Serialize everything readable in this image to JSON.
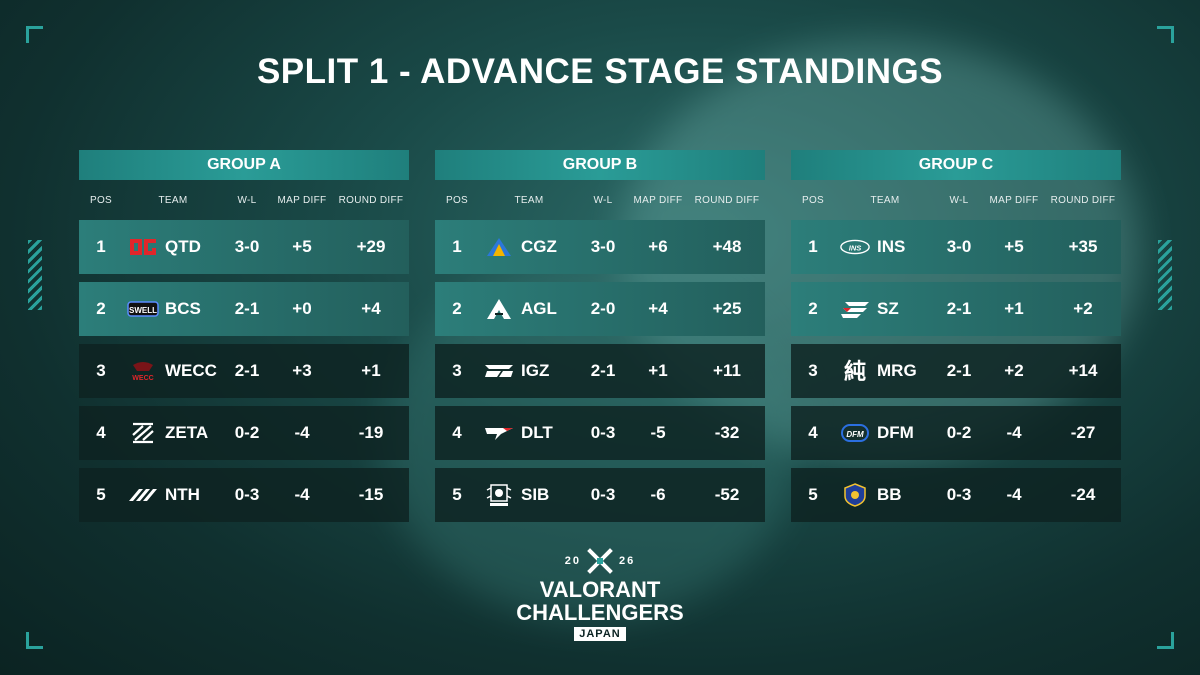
{
  "title": "SPLIT 1 - ADVANCE STAGE STANDINGS",
  "columns": {
    "pos": "POS",
    "team": "TEAM",
    "wl": "W-L",
    "map": "MAP DIFF",
    "round": "ROUND DIFF"
  },
  "colors": {
    "advance_row": "#2c7e7a",
    "normal_row": "#0e2221",
    "header": "#2a9c97",
    "accent": "#2aa29c"
  },
  "groups": [
    {
      "name": "GROUP A",
      "rows": [
        {
          "pos": "1",
          "team": "QTD",
          "wl": "3-0",
          "map": "+5",
          "round": "+29",
          "logo": "qtd-logo-icon"
        },
        {
          "pos": "2",
          "team": "BCS",
          "wl": "2-1",
          "map": "+0",
          "round": "+4",
          "logo": "bcs-logo-icon"
        },
        {
          "pos": "3",
          "team": "WECC",
          "wl": "2-1",
          "map": "+3",
          "round": "+1",
          "logo": "wecc-logo-icon"
        },
        {
          "pos": "4",
          "team": "ZETA",
          "wl": "0-2",
          "map": "-4",
          "round": "-19",
          "logo": "zeta-logo-icon"
        },
        {
          "pos": "5",
          "team": "NTH",
          "wl": "0-3",
          "map": "-4",
          "round": "-15",
          "logo": "nth-logo-icon"
        }
      ]
    },
    {
      "name": "GROUP B",
      "rows": [
        {
          "pos": "1",
          "team": "CGZ",
          "wl": "3-0",
          "map": "+6",
          "round": "+48",
          "logo": "cgz-logo-icon"
        },
        {
          "pos": "2",
          "team": "AGL",
          "wl": "2-0",
          "map": "+4",
          "round": "+25",
          "logo": "agl-logo-icon"
        },
        {
          "pos": "3",
          "team": "IGZ",
          "wl": "2-1",
          "map": "+1",
          "round": "+11",
          "logo": "igz-logo-icon"
        },
        {
          "pos": "4",
          "team": "DLT",
          "wl": "0-3",
          "map": "-5",
          "round": "-32",
          "logo": "dlt-logo-icon"
        },
        {
          "pos": "5",
          "team": "SIB",
          "wl": "0-3",
          "map": "-6",
          "round": "-52",
          "logo": "sib-logo-icon"
        }
      ]
    },
    {
      "name": "GROUP C",
      "rows": [
        {
          "pos": "1",
          "team": "INS",
          "wl": "3-0",
          "map": "+5",
          "round": "+35",
          "logo": "ins-logo-icon"
        },
        {
          "pos": "2",
          "team": "SZ",
          "wl": "2-1",
          "map": "+1",
          "round": "+2",
          "logo": "sz-logo-icon"
        },
        {
          "pos": "3",
          "team": "MRG",
          "wl": "2-1",
          "map": "+2",
          "round": "+14",
          "logo": "mrg-logo-icon"
        },
        {
          "pos": "4",
          "team": "DFM",
          "wl": "0-2",
          "map": "-4",
          "round": "-27",
          "logo": "dfm-logo-icon"
        },
        {
          "pos": "5",
          "team": "BB",
          "wl": "0-3",
          "map": "-4",
          "round": "-24",
          "logo": "bb-logo-icon"
        }
      ]
    }
  ],
  "brand": {
    "year_left": "20",
    "year_right": "26",
    "line1": "VALORANT",
    "line2": "CHALLENGERS",
    "region": "JAPAN"
  }
}
